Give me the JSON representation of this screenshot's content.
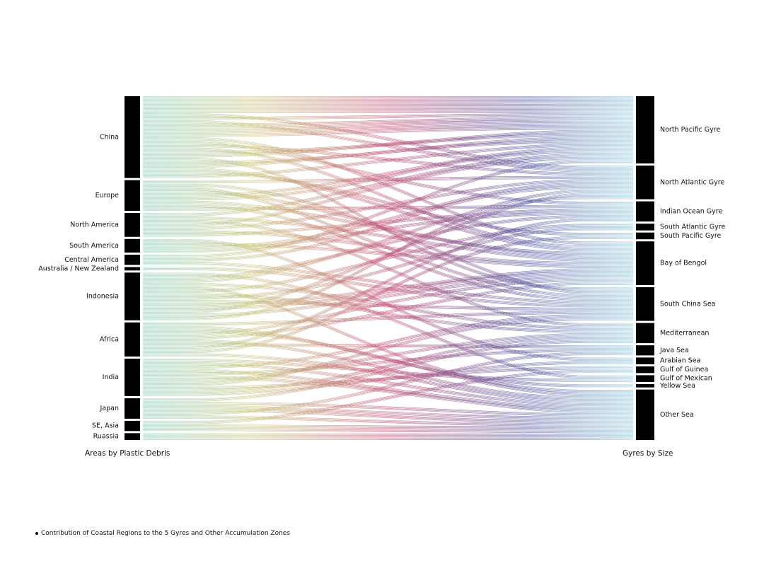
{
  "left_axis_title": "Areas by Plastic Debris",
  "right_axis_title": "Gyres by Size",
  "caption": "Contribution of Coastal Regions to the 5 Gyres and Other Accumulation Zones",
  "sources": [
    {
      "label": "China",
      "value": 24
    },
    {
      "label": "Europe",
      "value": 9
    },
    {
      "label": "North America",
      "value": 7
    },
    {
      "label": "South America",
      "value": 4
    },
    {
      "label": "Central America",
      "value": 3
    },
    {
      "label": "Australia / New Zealand",
      "value": 1
    },
    {
      "label": "Indonesia",
      "value": 14
    },
    {
      "label": "Africa",
      "value": 10
    },
    {
      "label": "India",
      "value": 11
    },
    {
      "label": "Japan",
      "value": 6
    },
    {
      "label": "SE, Asia",
      "value": 3
    },
    {
      "label": "Ruassia",
      "value": 2
    }
  ],
  "targets": [
    {
      "label": "North Pacific Gyre",
      "value": 20
    },
    {
      "label": "North Atlantic Gyre",
      "value": 10
    },
    {
      "label": "Indian Ocean  Gyre",
      "value": 6
    },
    {
      "label": "South Atlantic Gyre",
      "value": 2
    },
    {
      "label": "South Pacific Gyre",
      "value": 2
    },
    {
      "label": "Bay of Bengol",
      "value": 13
    },
    {
      "label": "South China Sea",
      "value": 10
    },
    {
      "label": "Mediterranean",
      "value": 6
    },
    {
      "label": "Java Sea",
      "value": 3
    },
    {
      "label": "Arabian Sea",
      "value": 2
    },
    {
      "label": "Gulf of Guinea",
      "value": 2
    },
    {
      "label": "Gulf of Mexican",
      "value": 2
    },
    {
      "label": "Yellow Sea",
      "value": 1
    },
    {
      "label": "Other Sea",
      "value": 15
    }
  ],
  "colors": {
    "node": "#000000",
    "left_flow": "#7ec8b0",
    "mid_left_flow": "#c9c27a",
    "mid_flow": "#c0557a",
    "mid_right_flow": "#5a5aa0",
    "right_flow": "#8cc8d8"
  }
}
